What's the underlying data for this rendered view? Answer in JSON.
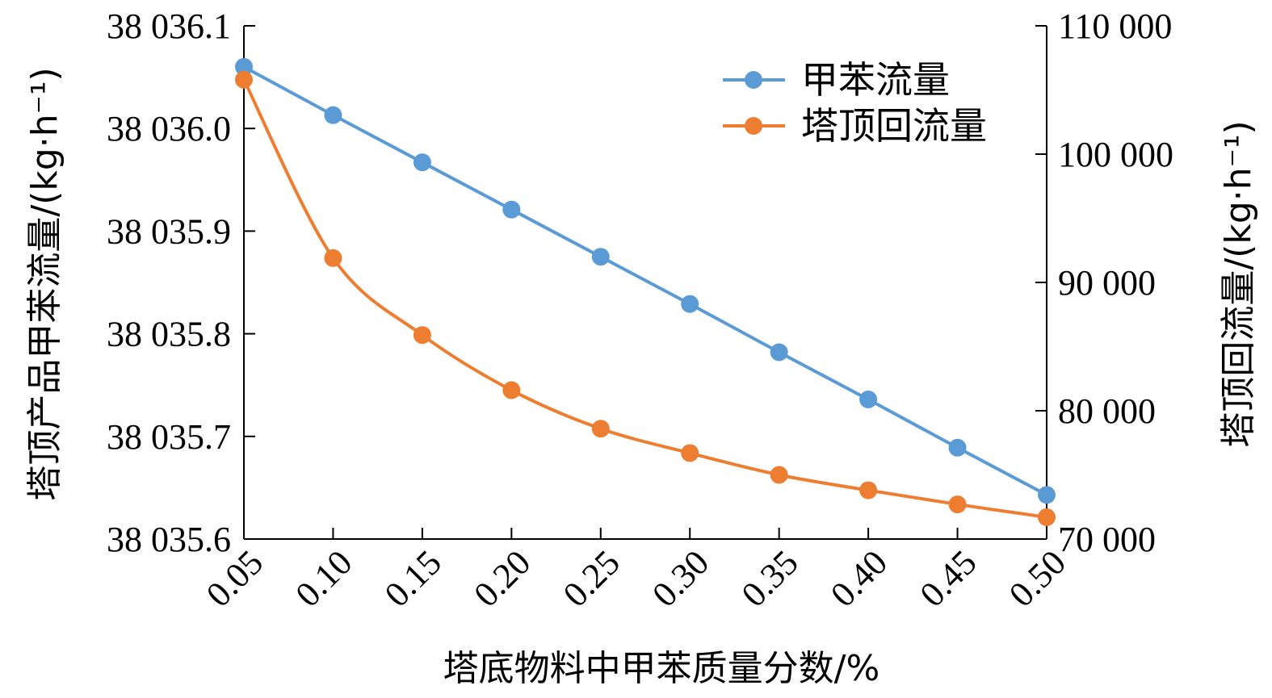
{
  "chart_data": {
    "type": "line",
    "x": [
      0.05,
      0.1,
      0.15,
      0.2,
      0.25,
      0.3,
      0.35,
      0.4,
      0.45,
      0.5
    ],
    "x_tick_labels": [
      "0.05",
      "0.10",
      "0.15",
      "0.20",
      "0.25",
      "0.30",
      "0.35",
      "0.40",
      "0.45",
      "0.50"
    ],
    "xlabel": "塔底物料中甲苯质量分数/%",
    "ylabel_left": "塔顶产品甲苯流量/(kg·h⁻¹)",
    "ylabel_right": "塔顶回流量/(kg·h⁻¹)",
    "ylim_left": [
      38035.6,
      38036.1
    ],
    "ylim_right": [
      70000,
      110000
    ],
    "y_left_ticks": [
      38035.6,
      38035.7,
      38035.8,
      38035.9,
      38036.0,
      38036.1
    ],
    "y_left_tick_labels": [
      "38 035.6",
      "38 035.7",
      "38 035.8",
      "38 035.9",
      "38 036.0",
      "38 036.1"
    ],
    "y_right_ticks": [
      70000,
      80000,
      90000,
      100000,
      110000
    ],
    "y_right_tick_labels": [
      "70 000",
      "80 000",
      "90 000",
      "100 000",
      "110 000"
    ],
    "grid": false,
    "legend_position": "top-right",
    "series": [
      {
        "name": "甲苯流量",
        "axis": "left",
        "color": "#5b9bd5",
        "smooth": false,
        "values": [
          38036.06,
          38036.013,
          38035.967,
          38035.921,
          38035.875,
          38035.829,
          38035.782,
          38035.736,
          38035.689,
          38035.643
        ]
      },
      {
        "name": "塔顶回流量",
        "axis": "right",
        "color": "#ed7d31",
        "smooth": true,
        "values": [
          105800,
          91900,
          85900,
          81600,
          78600,
          76700,
          75000,
          73800,
          72700,
          71700
        ]
      }
    ]
  }
}
